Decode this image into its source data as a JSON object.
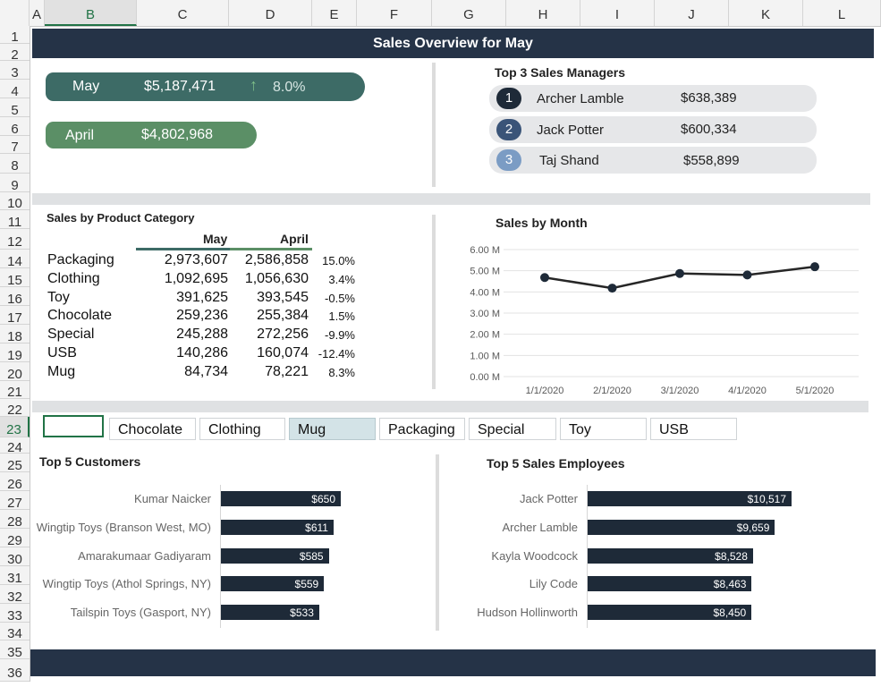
{
  "grid": {
    "columns": [
      "A",
      "B",
      "C",
      "D",
      "E",
      "F",
      "G",
      "H",
      "I",
      "J",
      "K",
      "L"
    ],
    "rows": [
      "1",
      "2",
      "3",
      "4",
      "5",
      "6",
      "7",
      "8",
      "9",
      "10",
      "11",
      "12",
      "14",
      "15",
      "16",
      "17",
      "18",
      "19",
      "20",
      "21",
      "22",
      "23",
      "24",
      "25",
      "26",
      "27",
      "28",
      "29",
      "30",
      "31",
      "32",
      "33",
      "34",
      "35",
      "36"
    ]
  },
  "title": "Sales Overview for May",
  "kpi": {
    "current": {
      "label": "May",
      "value": "$5,187,471",
      "change": "8.0%",
      "change_icon": "arrow-up-icon"
    },
    "previous": {
      "label": "April",
      "value": "$4,802,968"
    }
  },
  "managers": {
    "title": "Top 3 Sales Managers",
    "items": [
      {
        "rank": "1",
        "name": "Archer Lamble",
        "amount": "$638,389",
        "color": "#1e2a38"
      },
      {
        "rank": "2",
        "name": "Jack Potter",
        "amount": "$600,334",
        "color": "#3a5478"
      },
      {
        "rank": "3",
        "name": "Taj Shand",
        "amount": "$558,899",
        "color": "#7b9cc4"
      }
    ]
  },
  "category": {
    "title": "Sales by Product Category",
    "col_may": "May",
    "col_april": "April",
    "rows": [
      {
        "name": "Packaging",
        "may": "2,973,607",
        "april": "2,586,858",
        "pct": "15.0%"
      },
      {
        "name": "Clothing",
        "may": "1,092,695",
        "april": "1,056,630",
        "pct": "3.4%"
      },
      {
        "name": "Toy",
        "may": "391,625",
        "april": "393,545",
        "pct": "-0.5%"
      },
      {
        "name": "Chocolate",
        "may": "259,236",
        "april": "255,384",
        "pct": "1.5%"
      },
      {
        "name": "Special",
        "may": "245,288",
        "april": "272,256",
        "pct": "-9.9%"
      },
      {
        "name": "USB",
        "may": "140,286",
        "april": "160,074",
        "pct": "-12.4%"
      },
      {
        "name": "Mug",
        "may": "84,734",
        "april": "78,221",
        "pct": "8.3%"
      }
    ]
  },
  "chart_data": {
    "type": "line",
    "title": "Sales by Month",
    "x": [
      "1/1/2020",
      "2/1/2020",
      "3/1/2020",
      "4/1/2020",
      "5/1/2020"
    ],
    "series": [
      {
        "values": [
          4.68,
          4.18,
          4.87,
          4.8,
          5.19
        ]
      }
    ],
    "y_ticks": [
      "0.00 M",
      "1.00 M",
      "2.00 M",
      "3.00 M",
      "4.00 M",
      "5.00 M",
      "6.00 M"
    ],
    "ylim": [
      0,
      6
    ],
    "grid": true,
    "colors": {
      "line": "#262626",
      "marker": "#1e2a38"
    }
  },
  "slicer": {
    "items": [
      "",
      "Chocolate",
      "Clothing",
      "Mug",
      "Packaging",
      "Special",
      "Toy",
      "USB"
    ],
    "selected": "Mug"
  },
  "customers": {
    "title": "Top 5 Customers",
    "items": [
      {
        "name": "Kumar Naicker",
        "value": 650,
        "label": "$650"
      },
      {
        "name": "Wingtip Toys (Branson West, MO)",
        "value": 611,
        "label": "$611"
      },
      {
        "name": "Amarakumaar Gadiyaram",
        "value": 585,
        "label": "$585"
      },
      {
        "name": "Wingtip Toys (Athol Springs, NY)",
        "value": 559,
        "label": "$559"
      },
      {
        "name": "Tailspin Toys (Gasport, NY)",
        "value": 533,
        "label": "$533"
      }
    ]
  },
  "employees": {
    "title": "Top 5 Sales Employees",
    "items": [
      {
        "name": "Jack Potter",
        "value": 10517,
        "label": "$10,517"
      },
      {
        "name": "Archer Lamble",
        "value": 9659,
        "label": "$9,659"
      },
      {
        "name": "Kayla Woodcock",
        "value": 8528,
        "label": "$8,528"
      },
      {
        "name": "Lily Code",
        "value": 8463,
        "label": "$8,463"
      },
      {
        "name": "Hudson Hollinworth",
        "value": 8450,
        "label": "$8,450"
      }
    ]
  },
  "colors": {
    "banner": "#253347",
    "kpi_current": "#3d6b66",
    "kpi_previous": "#5b8f66",
    "accent_up": "#7fc08a",
    "bar": "#1e2a38"
  }
}
